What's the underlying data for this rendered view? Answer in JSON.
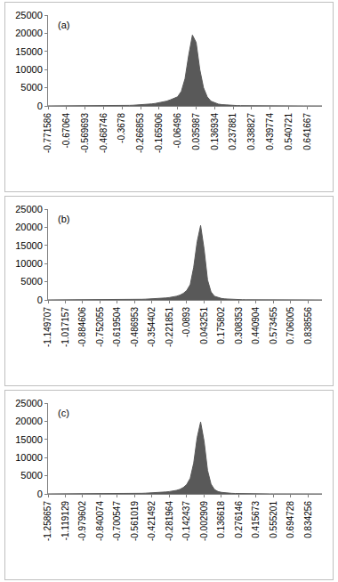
{
  "chart_data": [
    {
      "type": "area",
      "title": "(a)",
      "color": "#595959",
      "grid": false,
      "ylim": [
        0,
        25000
      ],
      "yticks": [
        0,
        5000,
        10000,
        15000,
        20000,
        25000
      ],
      "categories": [
        "-0.771586",
        null,
        null,
        null,
        null,
        "-0.67064",
        null,
        null,
        null,
        null,
        "-0.569693",
        null,
        null,
        null,
        null,
        "-0.468746",
        null,
        null,
        null,
        null,
        "-0.3678",
        null,
        null,
        null,
        null,
        "-0.266853",
        null,
        null,
        null,
        null,
        "-0.165906",
        null,
        null,
        null,
        null,
        "-0.06496",
        null,
        null,
        null,
        null,
        "0.035987",
        null,
        null,
        null,
        null,
        "0.136934",
        null,
        null,
        null,
        null,
        "0.237881",
        null,
        null,
        null,
        null,
        "0.338827",
        null,
        null,
        null,
        null,
        "0.439774",
        null,
        null,
        null,
        null,
        "0.540721",
        null,
        null,
        null,
        null,
        "0.641667",
        null,
        null,
        null,
        null
      ],
      "values": [
        5,
        5,
        8,
        8,
        10,
        10,
        12,
        14,
        15,
        18,
        20,
        22,
        25,
        30,
        35,
        40,
        48,
        55,
        65,
        80,
        100,
        120,
        150,
        190,
        240,
        300,
        370,
        450,
        550,
        680,
        850,
        1050,
        1300,
        1650,
        2000,
        2500,
        4000,
        7500,
        14000,
        19500,
        17500,
        10000,
        5000,
        2500,
        1300,
        800,
        500,
        350,
        250,
        180,
        130,
        100,
        80,
        65,
        50,
        40,
        32,
        25,
        20,
        16,
        13,
        10,
        8,
        7,
        6,
        5,
        4,
        4,
        3,
        3,
        2,
        2,
        2,
        1,
        1
      ]
    },
    {
      "type": "area",
      "title": "(b)",
      "color": "#595959",
      "grid": false,
      "ylim": [
        0,
        25000
      ],
      "yticks": [
        0,
        5000,
        10000,
        15000,
        20000,
        25000
      ],
      "categories": [
        "-1.149707",
        null,
        null,
        null,
        null,
        "-1.017157",
        null,
        null,
        null,
        null,
        "-0.884606",
        null,
        null,
        null,
        null,
        "-0.752055",
        null,
        null,
        null,
        null,
        "-0.619504",
        null,
        null,
        null,
        null,
        "-0.486953",
        null,
        null,
        null,
        null,
        "-0.354402",
        null,
        null,
        null,
        null,
        "-0.221851",
        null,
        null,
        null,
        null,
        "-0.0893",
        null,
        null,
        null,
        null,
        "0.043251",
        null,
        null,
        null,
        null,
        "0.175802",
        null,
        null,
        null,
        null,
        "0.308353",
        null,
        null,
        null,
        null,
        "0.440904",
        null,
        null,
        null,
        null,
        "0.573455",
        null,
        null,
        null,
        null,
        "0.706005",
        null,
        null,
        null,
        null,
        "0.838556",
        null,
        null,
        null,
        null
      ],
      "values": [
        5,
        5,
        6,
        8,
        8,
        10,
        10,
        12,
        14,
        15,
        18,
        20,
        22,
        25,
        28,
        32,
        36,
        40,
        45,
        52,
        60,
        70,
        80,
        95,
        110,
        130,
        150,
        175,
        200,
        235,
        270,
        320,
        380,
        450,
        540,
        650,
        800,
        1000,
        1300,
        1800,
        2600,
        4200,
        9000,
        16000,
        20500,
        14000,
        5500,
        2200,
        1000,
        600,
        400,
        280,
        200,
        150,
        110,
        85,
        65,
        50,
        40,
        32,
        25,
        20,
        16,
        13,
        10,
        8,
        7,
        6,
        5,
        4,
        4,
        3,
        3,
        2,
        2,
        2,
        1,
        1,
        1,
        1
      ]
    },
    {
      "type": "area",
      "title": "(c)",
      "color": "#595959",
      "grid": false,
      "ylim": [
        0,
        25000
      ],
      "yticks": [
        0,
        5000,
        10000,
        15000,
        20000,
        25000
      ],
      "categories": [
        "-1.258657",
        null,
        null,
        null,
        null,
        "-1.119129",
        null,
        null,
        null,
        null,
        "-0.979602",
        null,
        null,
        null,
        null,
        "-0.840074",
        null,
        null,
        null,
        null,
        "-0.700547",
        null,
        null,
        null,
        null,
        "-0.561019",
        null,
        null,
        null,
        null,
        "-0.421492",
        null,
        null,
        null,
        null,
        "-0.281964",
        null,
        null,
        null,
        null,
        "-0.142437",
        null,
        null,
        null,
        null,
        "-0.002909",
        null,
        null,
        null,
        null,
        "0.136618",
        null,
        null,
        null,
        null,
        "0.276146",
        null,
        null,
        null,
        null,
        "0.415673",
        null,
        null,
        null,
        null,
        "0.555201",
        null,
        null,
        null,
        null,
        "0.694728",
        null,
        null,
        null,
        null,
        "0.834256",
        null,
        null,
        null,
        null
      ],
      "values": [
        4,
        5,
        5,
        6,
        7,
        8,
        9,
        10,
        12,
        13,
        15,
        17,
        19,
        22,
        25,
        28,
        32,
        36,
        42,
        48,
        55,
        63,
        72,
        85,
        100,
        118,
        140,
        165,
        195,
        230,
        270,
        320,
        380,
        450,
        530,
        640,
        780,
        960,
        1250,
        1750,
        2600,
        4300,
        8500,
        15500,
        19800,
        14500,
        6500,
        2700,
        1200,
        650,
        420,
        290,
        210,
        155,
        115,
        88,
        68,
        52,
        41,
        33,
        26,
        21,
        17,
        14,
        11,
        9,
        7,
        6,
        5,
        4,
        4,
        3,
        3,
        2,
        2,
        2,
        1,
        1,
        1,
        1
      ]
    }
  ]
}
